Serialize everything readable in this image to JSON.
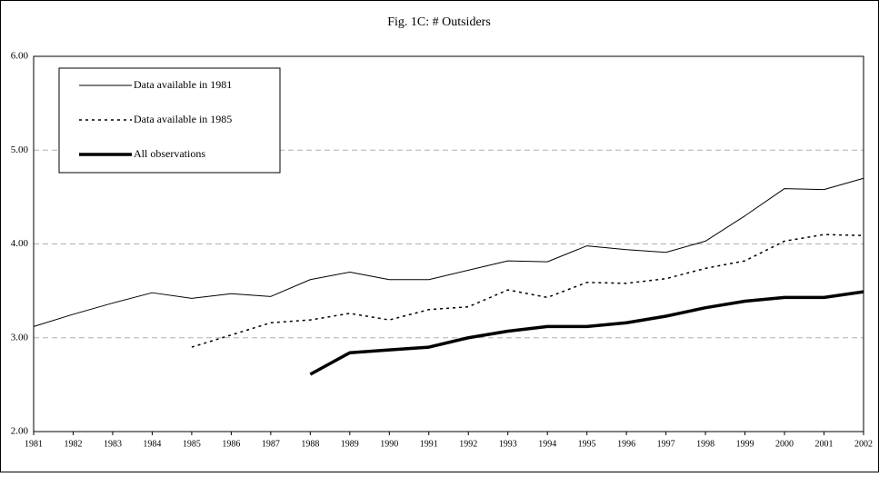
{
  "chart_data": {
    "type": "line",
    "title": "Fig. 1C: # Outsiders",
    "categories": [
      "1981",
      "1982",
      "1983",
      "1984",
      "1985",
      "1986",
      "1987",
      "1988",
      "1989",
      "1990",
      "1991",
      "1992",
      "1993",
      "1994",
      "1995",
      "1996",
      "1997",
      "1998",
      "1999",
      "2000",
      "2001",
      "2002"
    ],
    "series": [
      {
        "name": "Data available in 1981",
        "color": "#000000",
        "dash": "solid",
        "width": 1,
        "values": [
          3.12,
          3.25,
          3.37,
          3.48,
          3.42,
          3.47,
          3.44,
          3.62,
          3.7,
          3.62,
          3.62,
          3.72,
          3.82,
          3.81,
          3.98,
          3.94,
          3.91,
          4.03,
          4.3,
          4.59,
          4.58,
          4.7
        ]
      },
      {
        "name": "Data available in 1985",
        "color": "#000000",
        "dash": "dotted",
        "width": 1.5,
        "values": [
          null,
          null,
          null,
          null,
          2.9,
          3.03,
          3.16,
          3.19,
          3.26,
          3.19,
          3.3,
          3.33,
          3.51,
          3.43,
          3.59,
          3.58,
          3.63,
          3.74,
          3.82,
          4.03,
          4.1,
          4.09
        ]
      },
      {
        "name": "All observations",
        "color": "#000000",
        "dash": "solid",
        "width": 3.5,
        "values": [
          null,
          null,
          null,
          null,
          null,
          null,
          null,
          2.61,
          2.84,
          2.87,
          2.9,
          3.0,
          3.07,
          3.12,
          3.12,
          3.16,
          3.23,
          3.32,
          3.39,
          3.43,
          3.43,
          3.49
        ]
      }
    ],
    "ylim": [
      2,
      6
    ],
    "yticks": [
      {
        "value": 2,
        "label": "2.00"
      },
      {
        "value": 3,
        "label": "3.00"
      },
      {
        "value": 4,
        "label": "4.00"
      },
      {
        "value": 5,
        "label": "5.00"
      },
      {
        "value": 6,
        "label": "6.00"
      }
    ],
    "grid": true,
    "legend": "top-left"
  }
}
